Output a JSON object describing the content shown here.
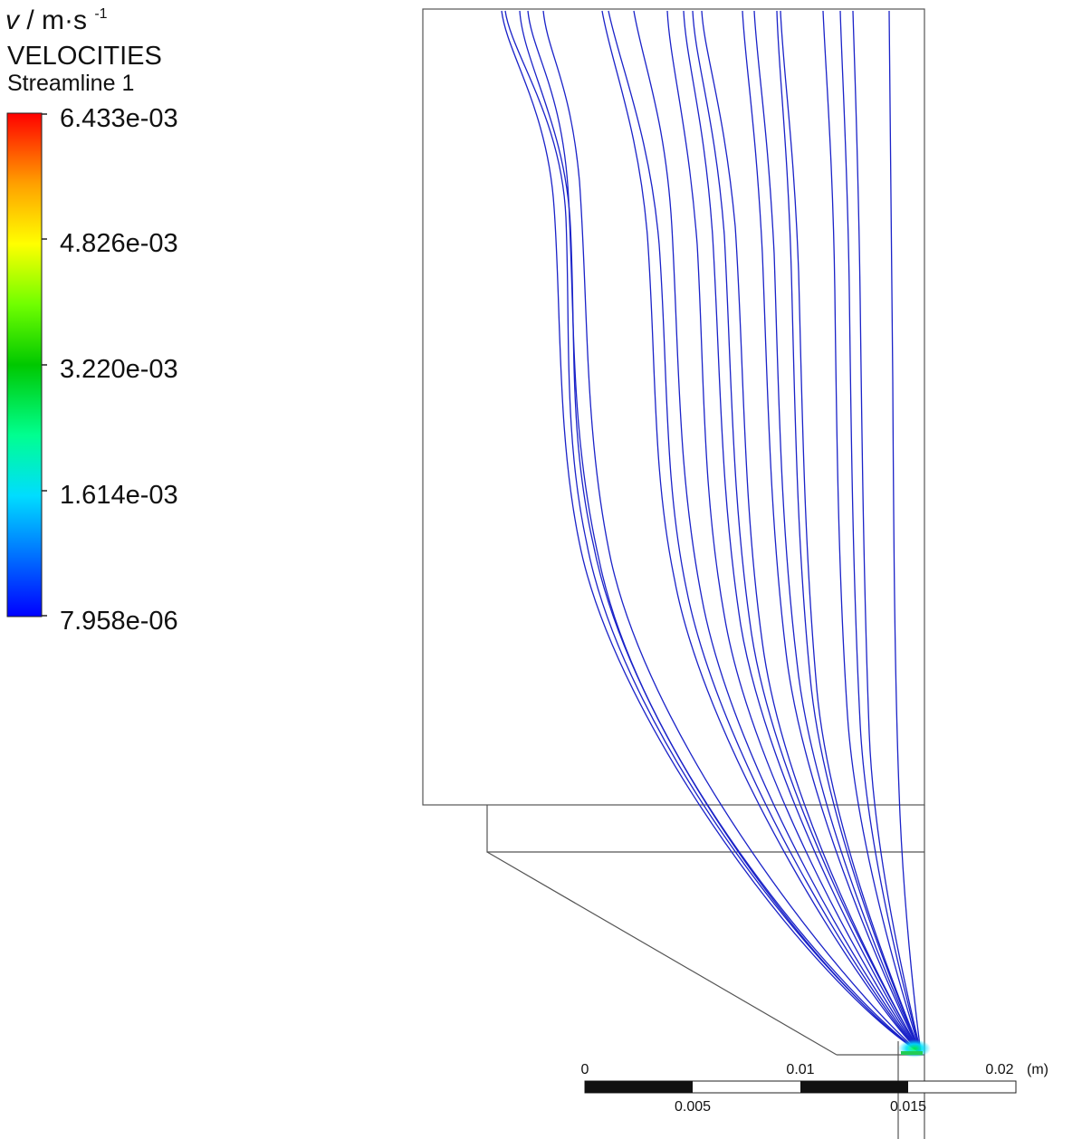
{
  "legend": {
    "variable_symbol": "v",
    "variable_separator": " / ",
    "unit_base": "m·s",
    "unit_exponent": "-1",
    "title": "VELOCITIES",
    "subtitle": "Streamline 1",
    "colormap": [
      "#0000ff",
      "#00a0ff",
      "#00ffff",
      "#00ff40",
      "#00c000",
      "#a0ff00",
      "#ffff00",
      "#ffa000",
      "#ff6000",
      "#ff0000"
    ],
    "ticks": [
      "6.433e-03",
      "4.826e-03",
      "3.220e-03",
      "1.614e-03",
      "7.958e-06"
    ]
  },
  "scale_bar": {
    "top_labels": [
      "0",
      "0.01",
      "0.02"
    ],
    "bottom_labels": [
      "0.005",
      "0.015"
    ],
    "unit": "(m)"
  },
  "diagram": {
    "streamline_color": "#1a22c8",
    "outline_color": "#555555"
  }
}
